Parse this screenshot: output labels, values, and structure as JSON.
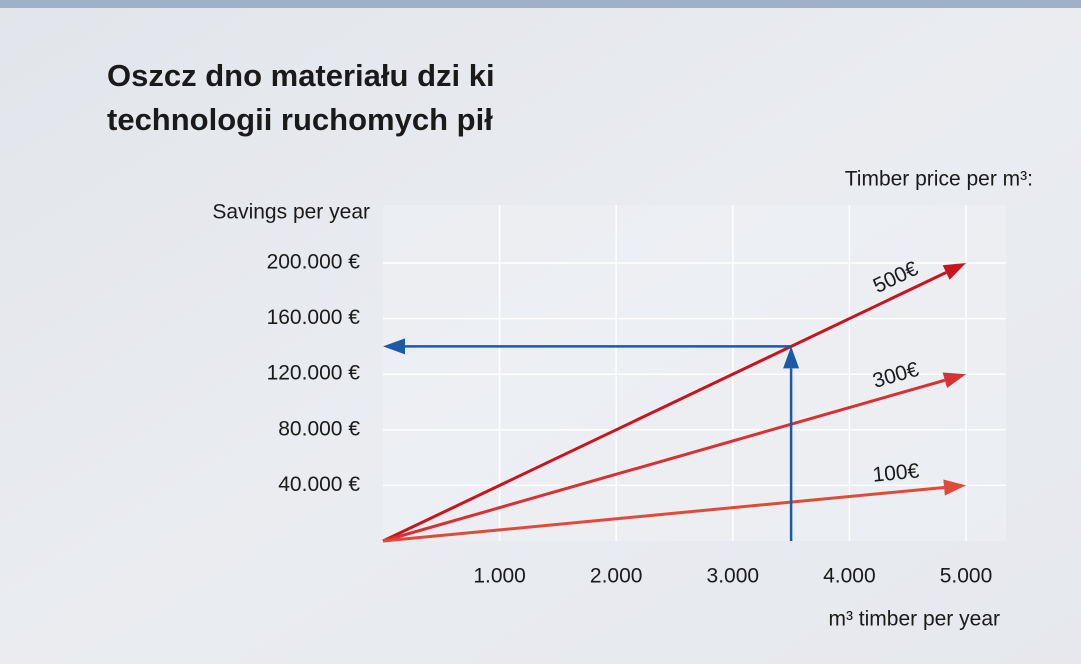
{
  "chart_data": {
    "type": "line",
    "title": [
      "Oszcz dno materiału dzi ki",
      "technologii ruchomych pił"
    ],
    "legend_title": "Timber price per m³:",
    "y_label": "Savings per year",
    "x_label": "m³ timber per year",
    "x": [
      0,
      5000
    ],
    "series": [
      {
        "name": "500€",
        "color": "#c8141e",
        "values": [
          0,
          200000
        ]
      },
      {
        "name": "300€",
        "color": "#d63232",
        "values": [
          0,
          120000
        ]
      },
      {
        "name": "100€",
        "color": "#e04a38",
        "values": [
          0,
          40000
        ]
      }
    ],
    "annotation": {
      "x": 3500,
      "y": 140000,
      "color": "#1b5aa6"
    },
    "xlim": [
      0,
      5000
    ],
    "xticks": [
      {
        "value": 1000,
        "label": "1.000"
      },
      {
        "value": 2000,
        "label": "2.000"
      },
      {
        "value": 3000,
        "label": "3.000"
      },
      {
        "value": 4000,
        "label": "4.000"
      },
      {
        "value": 5000,
        "label": "5.000"
      }
    ],
    "ylim": [
      0,
      200000
    ],
    "yticks": [
      {
        "value": 40000,
        "label": "40.000 €"
      },
      {
        "value": 80000,
        "label": "80.000 €"
      },
      {
        "value": 120000,
        "label": "120.000 €"
      },
      {
        "value": 160000,
        "label": "160.000 €"
      },
      {
        "value": 200000,
        "label": "200.000 €"
      }
    ],
    "grid": true
  }
}
